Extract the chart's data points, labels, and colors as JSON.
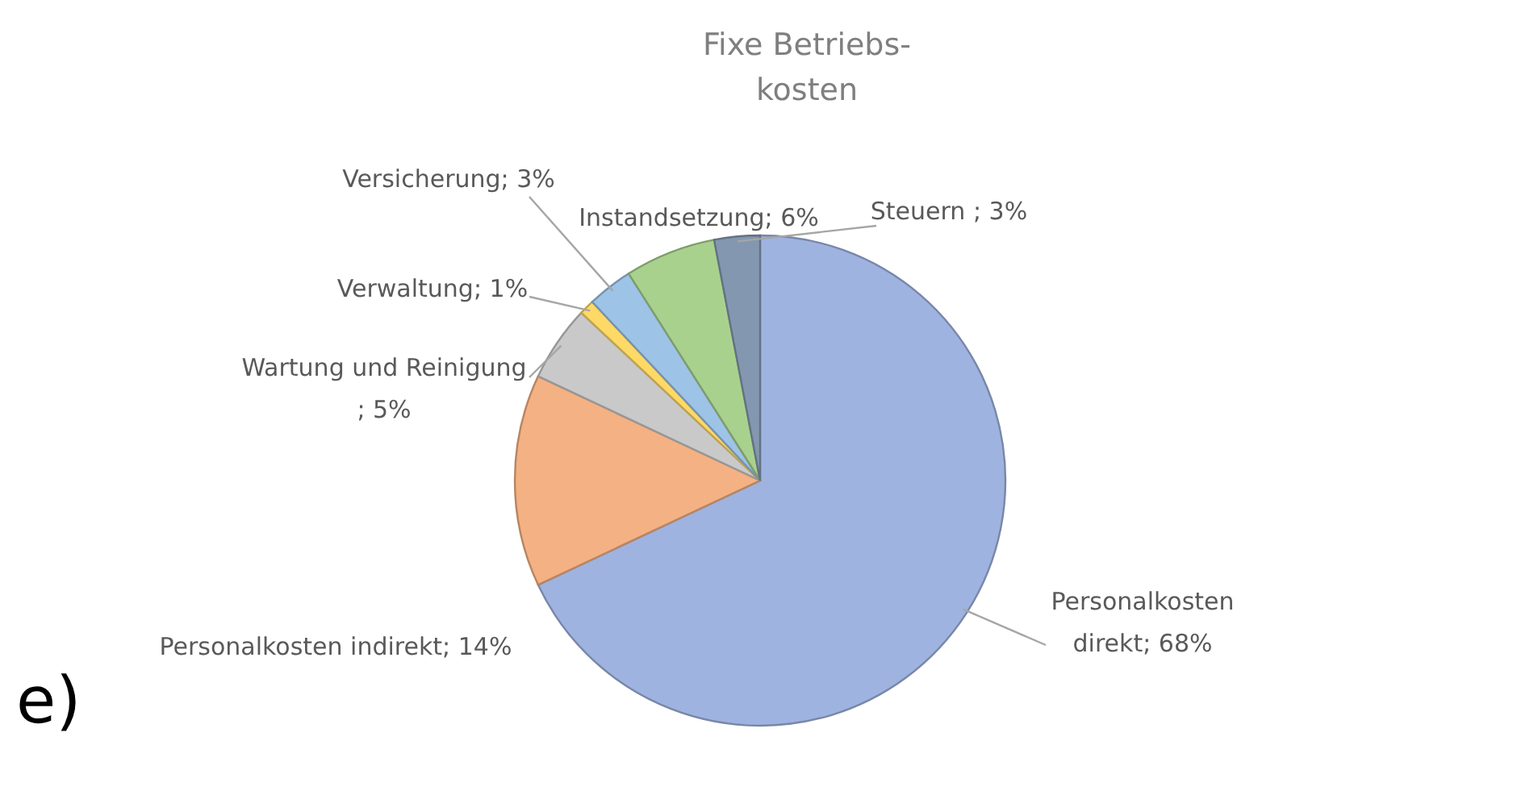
{
  "chart_data": {
    "type": "pie",
    "title": "Fixe Betriebs-kosten",
    "categories": [
      "Personalkosten direkt",
      "Personalkosten indirekt",
      "Wartung und Reinigung",
      "Verwaltung",
      "Versicherung",
      "Instandsetzung",
      "Steuern"
    ],
    "values": [
      68,
      14,
      5,
      1,
      3,
      6,
      3
    ],
    "colors": [
      "#9fb3e0",
      "#f4b183",
      "#c9c9c9",
      "#ffd966",
      "#9dc3e6",
      "#a9d18e",
      "#8497b0"
    ],
    "value_labels": [
      "; 68%",
      "; 14%",
      "\n; 5%",
      "; 1%",
      "; 3%",
      "; 6%",
      " ; 3%"
    ],
    "annotations": [
      "e)"
    ]
  }
}
